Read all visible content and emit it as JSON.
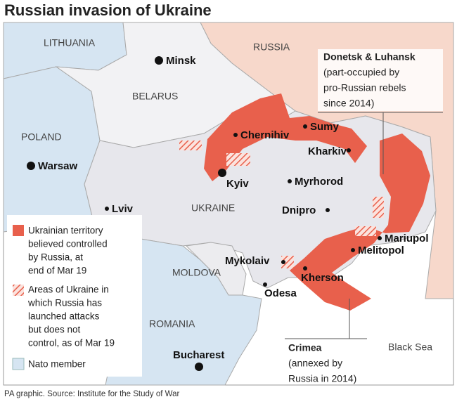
{
  "title": "Russian invasion of Ukraine",
  "countries": [
    "LITHUANIA",
    "RUSSIA",
    "BELARUS",
    "POLAND",
    "UKRAINE",
    "MOLDOVA",
    "ROMANIA"
  ],
  "cities": [
    "Minsk",
    "Warsaw",
    "Chernihiv",
    "Sumy",
    "Kharkiv",
    "Kyiv",
    "Myrhorod",
    "Lviv",
    "Dnipro",
    "Mariupol",
    "Melitopol",
    "Mykolaiv",
    "Kherson",
    "Odesa",
    "Bucharest"
  ],
  "sea": "Black Sea",
  "annotations": [
    {
      "title": "Donetsk & Luhansk",
      "lines": [
        "(part-occupied by",
        "pro-Russian rebels",
        "since 2014)"
      ]
    },
    {
      "title": "Crimea",
      "lines": [
        "(annexed by",
        "Russia in 2014)"
      ]
    }
  ],
  "legend": [
    {
      "lines": [
        "Ukrainian territory",
        "believed controlled",
        "by Russia, at",
        "end of Mar 19"
      ]
    },
    {
      "lines": [
        "Areas of Ukraine in",
        "which Russia has",
        "launched attacks",
        "but does not",
        "control, as of Mar 19"
      ]
    },
    {
      "lines": [
        "Nato member"
      ]
    }
  ],
  "source": "PA graphic. Source: Institute for the Study of War"
}
